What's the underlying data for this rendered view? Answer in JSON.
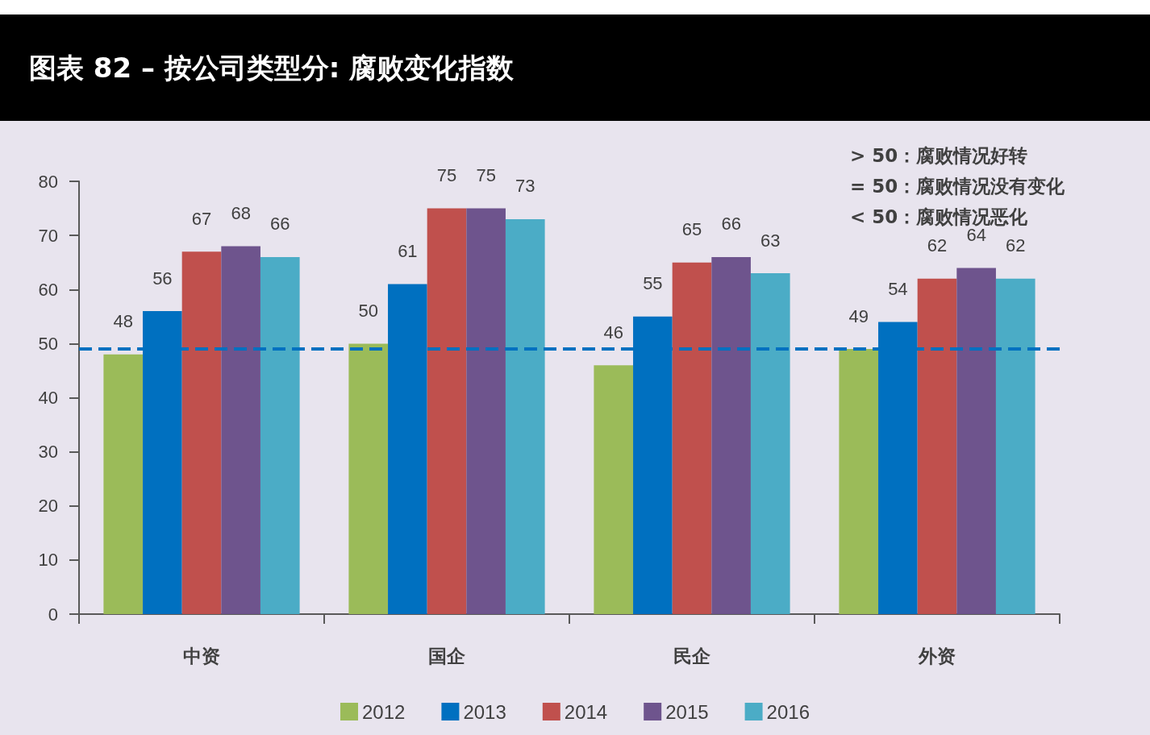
{
  "chart_data": {
    "type": "bar",
    "title": "图表 82 – 按公司类型分: 腐败变化指数",
    "categories": [
      "中资",
      "国企",
      "民企",
      "外资"
    ],
    "series": [
      {
        "name": "2012",
        "color": "#9bbb59",
        "values": [
          48,
          50,
          46,
          49
        ]
      },
      {
        "name": "2013",
        "color": "#0070c0",
        "values": [
          56,
          61,
          55,
          54
        ]
      },
      {
        "name": "2014",
        "color": "#c0504d",
        "values": [
          67,
          75,
          65,
          62
        ]
      },
      {
        "name": "2015",
        "color": "#6e548d",
        "values": [
          68,
          75,
          66,
          64
        ]
      },
      {
        "name": "2016",
        "color": "#4bacc6",
        "values": [
          66,
          73,
          63,
          62
        ]
      }
    ],
    "ylim": [
      0,
      80
    ],
    "yticks": [
      0,
      10,
      20,
      30,
      40,
      50,
      60,
      70,
      80
    ],
    "ref_lines": [
      {
        "axis": "y",
        "value": 49,
        "color": "#0070c0",
        "line_style": "dashed"
      }
    ],
    "annotations": [
      "> 50：腐败情况好转",
      "= 50：腐败情况没有变化",
      "< 50：腐败情况恶化"
    ],
    "data_labels": true,
    "grid": false,
    "legend": "bottom"
  }
}
